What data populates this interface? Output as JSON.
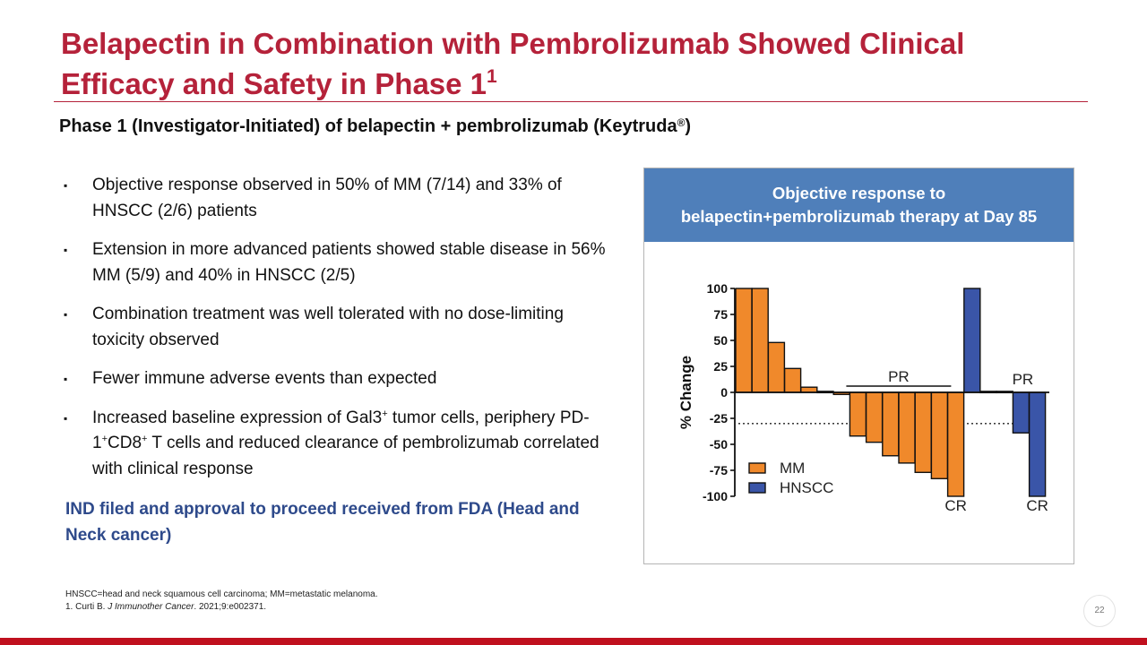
{
  "slide": {
    "title": "Belapectin in Combination with Pembrolizumab Showed Clinical Efficacy and Safety in Phase 1",
    "title_ref": "1",
    "subtitle_main": "Phase 1 (Investigator-Initiated) of belapectin + pembrolizumab (Keytruda",
    "subtitle_reg": "®",
    "subtitle_end": ")",
    "bullet_marker": "▪",
    "bullets": [
      {
        "text": "Objective response observed in 50% of MM (7/14) and 33% of HNSCC (2/6) patients"
      },
      {
        "text": "Extension in more advanced patients showed stable disease in 56% MM (5/9) and 40% in HNSCC (2/5)"
      },
      {
        "text": "Combination treatment was well tolerated with no dose-limiting toxicity observed"
      },
      {
        "text": "Fewer immune adverse events than expected"
      },
      {
        "part1": "Increased baseline expression of Gal3",
        "sup1": "+",
        "part2": " tumor cells, periphery PD-1",
        "sup2": "+",
        "part3": "CD8",
        "sup3": "+",
        "part4": " T cells and reduced clearance of pembrolizumab correlated with clinical response"
      }
    ],
    "ind_text": "IND filed and approval to proceed received from FDA (Head and Neck cancer)",
    "footnote_line1": "HNSCC=head and neck squamous cell carcinoma; MM=metastatic melanoma.",
    "footnote_line2_a": "1. Curti B. ",
    "footnote_line2_journal": "J Immunother Cancer",
    "footnote_line2_b": ". 2021;9:e002371.",
    "page_number": "22"
  },
  "colors": {
    "title_red": "#b5223a",
    "ind_blue": "#2e4a8b",
    "header_blue": "#4f7fba",
    "mm_orange": "#f0892b",
    "hnscc_blue": "#3a55a8",
    "bottom_bar": "#c0101e"
  },
  "chart_data": {
    "type": "bar",
    "title_line1": "Objective response to",
    "title_line2": "belapectin+pembrolizumab therapy at Day 85",
    "ylabel": "% Change",
    "ylim": [
      -100,
      100
    ],
    "yticks": [
      100,
      75,
      50,
      25,
      0,
      -25,
      -50,
      -75,
      -100
    ],
    "threshold": -30,
    "series_names": {
      "MM": "MM",
      "HNSCC": "HNSCC"
    },
    "bars": [
      {
        "series": "MM",
        "value": 100
      },
      {
        "series": "MM",
        "value": 100
      },
      {
        "series": "MM",
        "value": 48
      },
      {
        "series": "MM",
        "value": 23
      },
      {
        "series": "MM",
        "value": 5
      },
      {
        "series": "MM",
        "value": 1
      },
      {
        "series": "MM",
        "value": -2
      },
      {
        "series": "MM",
        "value": -42
      },
      {
        "series": "MM",
        "value": -48
      },
      {
        "series": "MM",
        "value": -61
      },
      {
        "series": "MM",
        "value": -68
      },
      {
        "series": "MM",
        "value": -77
      },
      {
        "series": "MM",
        "value": -83
      },
      {
        "series": "MM",
        "value": -100
      },
      {
        "series": "HNSCC",
        "value": 100
      },
      {
        "series": "HNSCC",
        "value": 1
      },
      {
        "series": "HNSCC",
        "value": 1
      },
      {
        "series": "HNSCC",
        "value": -39
      },
      {
        "series": "HNSCC",
        "value": -100
      }
    ],
    "annotations": [
      {
        "text": "PR",
        "type": "bracket",
        "from_bar": 7,
        "to_bar": 12
      },
      {
        "text": "CR",
        "type": "below",
        "bar": 13
      },
      {
        "text": "PR",
        "type": "bracket",
        "from_bar": 17,
        "to_bar": 17
      },
      {
        "text": "CR",
        "type": "below",
        "bar": 18
      }
    ],
    "legend": [
      {
        "series": "MM",
        "label": "MM"
      },
      {
        "series": "HNSCC",
        "label": "HNSCC"
      }
    ],
    "legend_position": "bottom-left"
  }
}
